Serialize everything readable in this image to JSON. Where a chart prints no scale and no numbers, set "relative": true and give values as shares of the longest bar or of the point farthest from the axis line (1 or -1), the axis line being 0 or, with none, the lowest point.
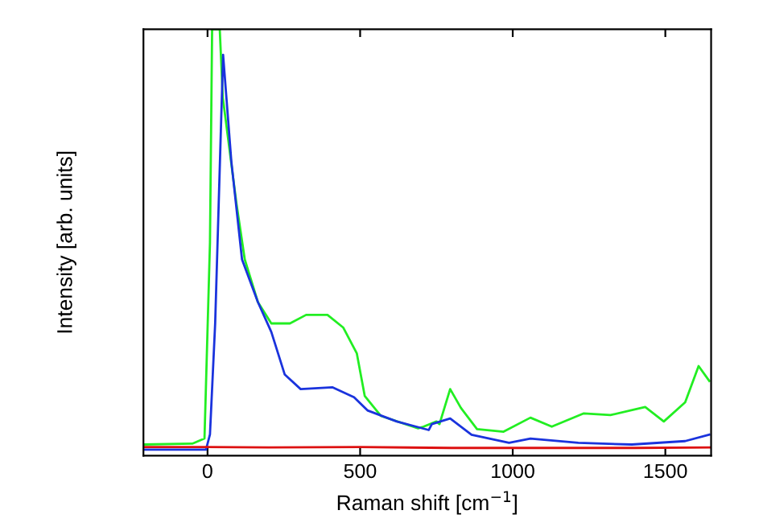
{
  "chart_data": {
    "type": "line",
    "relative": true,
    "xlabel": "Raman shift [cm$^{−1}$]",
    "ylabel": "Intensity [arb. units]",
    "xlim": [
      -210,
      1650
    ],
    "xticks": [
      0,
      500,
      1000,
      1500
    ],
    "grid": false,
    "legend": false,
    "marker": "none",
    "line_style": "solid",
    "series": [
      {
        "color": "#22ee22",
        "x": [
          -210,
          -50,
          -10,
          8,
          15,
          40,
          50,
          95,
          122,
          165,
          209,
          270,
          323,
          393,
          445,
          489,
          515,
          568,
          690,
          708,
          750,
          760,
          795,
          830,
          883,
          970,
          1058,
          1128,
          1233,
          1320,
          1434,
          1495,
          1565,
          1609,
          1644
        ],
        "values": [
          0.026,
          0.028,
          0.04,
          0.5,
          1.0,
          1.0,
          0.84,
          0.59,
          0.46,
          0.36,
          0.31,
          0.31,
          0.33,
          0.33,
          0.3,
          0.24,
          0.14,
          0.093,
          0.064,
          0.068,
          0.08,
          0.074,
          0.156,
          0.112,
          0.062,
          0.056,
          0.089,
          0.068,
          0.099,
          0.095,
          0.114,
          0.08,
          0.125,
          0.21,
          0.175
        ]
      },
      {
        "color": "#1a33dd",
        "x": [
          -210,
          -5,
          8,
          25,
          51,
          78,
          113,
          165,
          209,
          253,
          305,
          410,
          480,
          524,
          620,
          725,
          735,
          795,
          865,
          988,
          1058,
          1215,
          1390,
          1565,
          1644
        ],
        "values": [
          0.014,
          0.014,
          0.05,
          0.31,
          0.94,
          0.69,
          0.46,
          0.36,
          0.29,
          0.19,
          0.156,
          0.16,
          0.137,
          0.106,
          0.08,
          0.06,
          0.074,
          0.087,
          0.049,
          0.03,
          0.04,
          0.03,
          0.026,
          0.034,
          0.049
        ]
      },
      {
        "color": "#dd1111",
        "x": [
          -210,
          0,
          200,
          500,
          800,
          1100,
          1400,
          1650
        ],
        "values": [
          0.02,
          0.02,
          0.019,
          0.02,
          0.018,
          0.018,
          0.018,
          0.019
        ]
      }
    ]
  }
}
